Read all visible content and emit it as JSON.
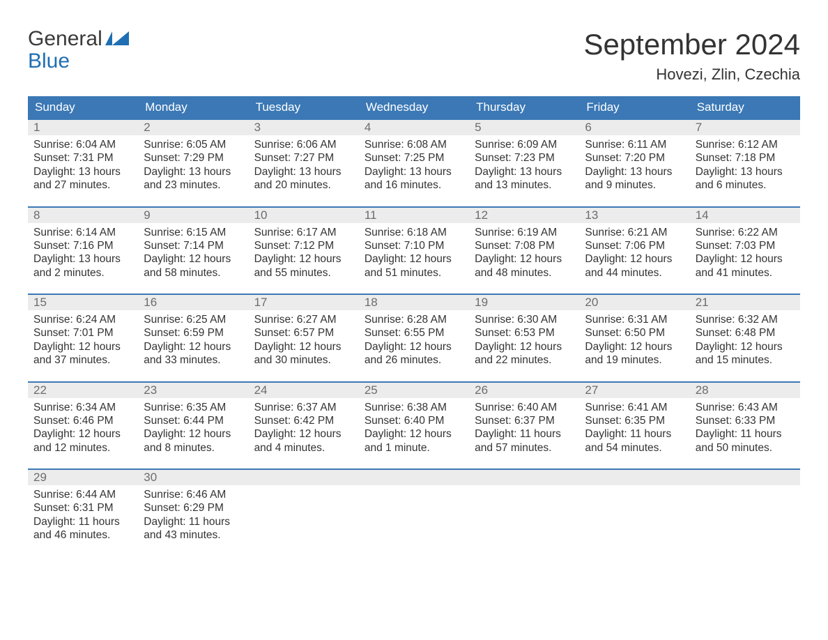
{
  "logo": {
    "line1": "General",
    "line2": "Blue",
    "brand_color": "#1f6fb2"
  },
  "title": "September 2024",
  "location": "Hovezi, Zlin, Czechia",
  "colors": {
    "header_bg": "#3b78b5",
    "header_text": "#ffffff",
    "band_bg": "#ececec",
    "band_text": "#6c6c6c",
    "body_text": "#333333",
    "row_border": "#3b78b5",
    "page_bg": "#ffffff"
  },
  "day_headers": [
    "Sunday",
    "Monday",
    "Tuesday",
    "Wednesday",
    "Thursday",
    "Friday",
    "Saturday"
  ],
  "weeks": [
    [
      {
        "n": "1",
        "sunrise": "Sunrise: 6:04 AM",
        "sunset": "Sunset: 7:31 PM",
        "daylight": "Daylight: 13 hours and 27 minutes."
      },
      {
        "n": "2",
        "sunrise": "Sunrise: 6:05 AM",
        "sunset": "Sunset: 7:29 PM",
        "daylight": "Daylight: 13 hours and 23 minutes."
      },
      {
        "n": "3",
        "sunrise": "Sunrise: 6:06 AM",
        "sunset": "Sunset: 7:27 PM",
        "daylight": "Daylight: 13 hours and 20 minutes."
      },
      {
        "n": "4",
        "sunrise": "Sunrise: 6:08 AM",
        "sunset": "Sunset: 7:25 PM",
        "daylight": "Daylight: 13 hours and 16 minutes."
      },
      {
        "n": "5",
        "sunrise": "Sunrise: 6:09 AM",
        "sunset": "Sunset: 7:23 PM",
        "daylight": "Daylight: 13 hours and 13 minutes."
      },
      {
        "n": "6",
        "sunrise": "Sunrise: 6:11 AM",
        "sunset": "Sunset: 7:20 PM",
        "daylight": "Daylight: 13 hours and 9 minutes."
      },
      {
        "n": "7",
        "sunrise": "Sunrise: 6:12 AM",
        "sunset": "Sunset: 7:18 PM",
        "daylight": "Daylight: 13 hours and 6 minutes."
      }
    ],
    [
      {
        "n": "8",
        "sunrise": "Sunrise: 6:14 AM",
        "sunset": "Sunset: 7:16 PM",
        "daylight": "Daylight: 13 hours and 2 minutes."
      },
      {
        "n": "9",
        "sunrise": "Sunrise: 6:15 AM",
        "sunset": "Sunset: 7:14 PM",
        "daylight": "Daylight: 12 hours and 58 minutes."
      },
      {
        "n": "10",
        "sunrise": "Sunrise: 6:17 AM",
        "sunset": "Sunset: 7:12 PM",
        "daylight": "Daylight: 12 hours and 55 minutes."
      },
      {
        "n": "11",
        "sunrise": "Sunrise: 6:18 AM",
        "sunset": "Sunset: 7:10 PM",
        "daylight": "Daylight: 12 hours and 51 minutes."
      },
      {
        "n": "12",
        "sunrise": "Sunrise: 6:19 AM",
        "sunset": "Sunset: 7:08 PM",
        "daylight": "Daylight: 12 hours and 48 minutes."
      },
      {
        "n": "13",
        "sunrise": "Sunrise: 6:21 AM",
        "sunset": "Sunset: 7:06 PM",
        "daylight": "Daylight: 12 hours and 44 minutes."
      },
      {
        "n": "14",
        "sunrise": "Sunrise: 6:22 AM",
        "sunset": "Sunset: 7:03 PM",
        "daylight": "Daylight: 12 hours and 41 minutes."
      }
    ],
    [
      {
        "n": "15",
        "sunrise": "Sunrise: 6:24 AM",
        "sunset": "Sunset: 7:01 PM",
        "daylight": "Daylight: 12 hours and 37 minutes."
      },
      {
        "n": "16",
        "sunrise": "Sunrise: 6:25 AM",
        "sunset": "Sunset: 6:59 PM",
        "daylight": "Daylight: 12 hours and 33 minutes."
      },
      {
        "n": "17",
        "sunrise": "Sunrise: 6:27 AM",
        "sunset": "Sunset: 6:57 PM",
        "daylight": "Daylight: 12 hours and 30 minutes."
      },
      {
        "n": "18",
        "sunrise": "Sunrise: 6:28 AM",
        "sunset": "Sunset: 6:55 PM",
        "daylight": "Daylight: 12 hours and 26 minutes."
      },
      {
        "n": "19",
        "sunrise": "Sunrise: 6:30 AM",
        "sunset": "Sunset: 6:53 PM",
        "daylight": "Daylight: 12 hours and 22 minutes."
      },
      {
        "n": "20",
        "sunrise": "Sunrise: 6:31 AM",
        "sunset": "Sunset: 6:50 PM",
        "daylight": "Daylight: 12 hours and 19 minutes."
      },
      {
        "n": "21",
        "sunrise": "Sunrise: 6:32 AM",
        "sunset": "Sunset: 6:48 PM",
        "daylight": "Daylight: 12 hours and 15 minutes."
      }
    ],
    [
      {
        "n": "22",
        "sunrise": "Sunrise: 6:34 AM",
        "sunset": "Sunset: 6:46 PM",
        "daylight": "Daylight: 12 hours and 12 minutes."
      },
      {
        "n": "23",
        "sunrise": "Sunrise: 6:35 AM",
        "sunset": "Sunset: 6:44 PM",
        "daylight": "Daylight: 12 hours and 8 minutes."
      },
      {
        "n": "24",
        "sunrise": "Sunrise: 6:37 AM",
        "sunset": "Sunset: 6:42 PM",
        "daylight": "Daylight: 12 hours and 4 minutes."
      },
      {
        "n": "25",
        "sunrise": "Sunrise: 6:38 AM",
        "sunset": "Sunset: 6:40 PM",
        "daylight": "Daylight: 12 hours and 1 minute."
      },
      {
        "n": "26",
        "sunrise": "Sunrise: 6:40 AM",
        "sunset": "Sunset: 6:37 PM",
        "daylight": "Daylight: 11 hours and 57 minutes."
      },
      {
        "n": "27",
        "sunrise": "Sunrise: 6:41 AM",
        "sunset": "Sunset: 6:35 PM",
        "daylight": "Daylight: 11 hours and 54 minutes."
      },
      {
        "n": "28",
        "sunrise": "Sunrise: 6:43 AM",
        "sunset": "Sunset: 6:33 PM",
        "daylight": "Daylight: 11 hours and 50 minutes."
      }
    ],
    [
      {
        "n": "29",
        "sunrise": "Sunrise: 6:44 AM",
        "sunset": "Sunset: 6:31 PM",
        "daylight": "Daylight: 11 hours and 46 minutes."
      },
      {
        "n": "30",
        "sunrise": "Sunrise: 6:46 AM",
        "sunset": "Sunset: 6:29 PM",
        "daylight": "Daylight: 11 hours and 43 minutes."
      },
      null,
      null,
      null,
      null,
      null
    ]
  ]
}
